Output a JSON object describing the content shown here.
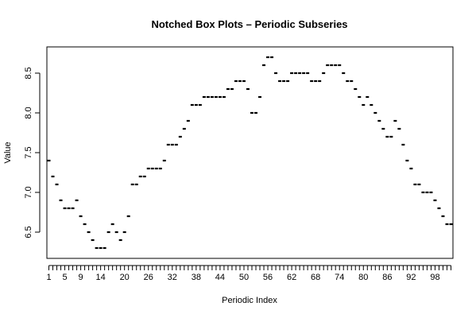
{
  "chart_data": {
    "type": "box",
    "title": "Notched Box Plots – Periodic Subseries",
    "xlabel": "Periodic Index",
    "ylabel": "Value",
    "x": [
      1,
      2,
      3,
      4,
      5,
      6,
      7,
      8,
      9,
      10,
      11,
      12,
      13,
      14,
      15,
      16,
      17,
      18,
      19,
      20,
      21,
      22,
      23,
      24,
      25,
      26,
      27,
      28,
      29,
      30,
      31,
      32,
      33,
      34,
      35,
      36,
      37,
      38,
      39,
      40,
      41,
      42,
      43,
      44,
      45,
      46,
      47,
      48,
      49,
      50,
      51,
      52,
      53,
      54,
      55,
      56,
      57,
      58,
      59,
      60,
      61,
      62,
      63,
      64,
      65,
      66,
      67,
      68,
      69,
      70,
      71,
      72,
      73,
      74,
      75,
      76,
      77,
      78,
      79,
      80,
      81,
      82,
      83,
      84,
      85,
      86,
      87,
      88,
      89,
      90,
      91,
      92,
      93,
      94,
      95,
      96,
      97,
      98,
      99,
      100,
      101,
      102
    ],
    "values": [
      7.4,
      7.2,
      7.1,
      6.9,
      6.8,
      6.8,
      6.8,
      6.9,
      6.7,
      6.6,
      6.5,
      6.4,
      6.3,
      6.3,
      6.3,
      6.5,
      6.6,
      6.5,
      6.4,
      6.5,
      6.7,
      7.1,
      7.1,
      7.2,
      7.2,
      7.3,
      7.3,
      7.3,
      7.3,
      7.4,
      7.6,
      7.6,
      7.6,
      7.7,
      7.8,
      7.9,
      8.1,
      8.1,
      8.1,
      8.2,
      8.2,
      8.2,
      8.2,
      8.2,
      8.2,
      8.3,
      8.3,
      8.4,
      8.4,
      8.4,
      8.3,
      8.0,
      8.0,
      8.2,
      8.6,
      8.7,
      8.7,
      8.5,
      8.4,
      8.4,
      8.4,
      8.5,
      8.5,
      8.5,
      8.5,
      8.5,
      8.4,
      8.4,
      8.4,
      8.5,
      8.6,
      8.6,
      8.6,
      8.6,
      8.5,
      8.4,
      8.4,
      8.3,
      8.2,
      8.1,
      8.2,
      8.1,
      8.0,
      7.9,
      7.8,
      7.7,
      7.7,
      7.9,
      7.8,
      7.6,
      7.4,
      7.3,
      7.1,
      7.1,
      7.0,
      7.0,
      7.0,
      6.9,
      6.8,
      6.7,
      6.6,
      6.6
    ],
    "xtick_labels": [
      "1",
      "5",
      "9",
      "14",
      "20",
      "26",
      "32",
      "38",
      "44",
      "50",
      "56",
      "62",
      "68",
      "74",
      "80",
      "86",
      "92",
      "98"
    ],
    "yticks": [
      "6.5",
      "7.0",
      "7.5",
      "8.0",
      "8.5"
    ],
    "xlim": [
      0.5,
      102.5
    ],
    "ylim": [
      6.17,
      8.83
    ],
    "grid": false,
    "legend": "none"
  }
}
